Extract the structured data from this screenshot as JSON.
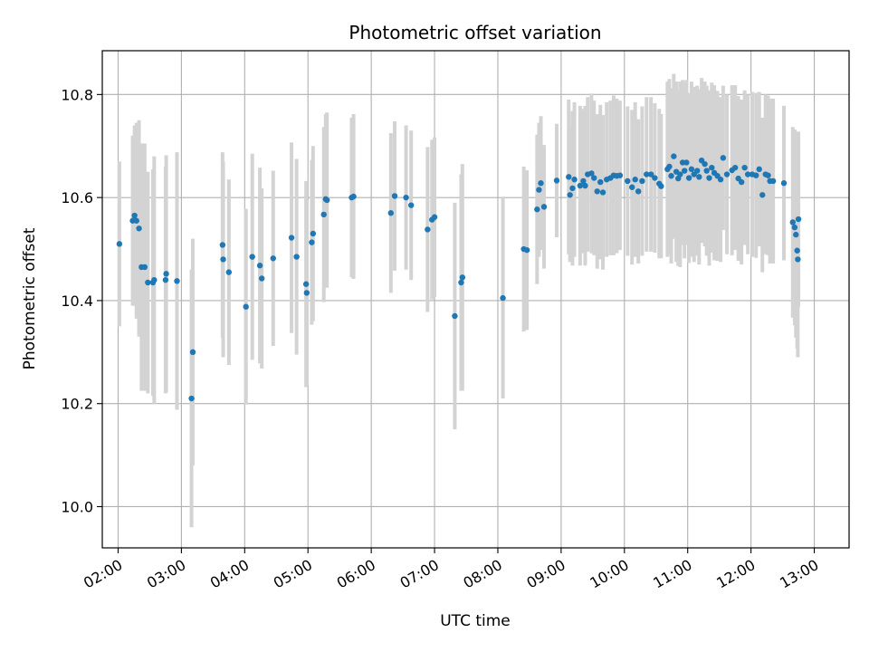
{
  "chart_data": {
    "type": "scatter",
    "title": "Photometric offset variation",
    "xlabel": "UTC time",
    "ylabel": "Photometric offset",
    "x_unit": "hours UTC",
    "xlim": [
      1.75,
      13.55
    ],
    "ylim": [
      9.92,
      10.885
    ],
    "x_ticks": [
      {
        "value": 2,
        "label": "02:00"
      },
      {
        "value": 3,
        "label": "03:00"
      },
      {
        "value": 4,
        "label": "04:00"
      },
      {
        "value": 5,
        "label": "05:00"
      },
      {
        "value": 6,
        "label": "06:00"
      },
      {
        "value": 7,
        "label": "07:00"
      },
      {
        "value": 8,
        "label": "08:00"
      },
      {
        "value": 9,
        "label": "09:00"
      },
      {
        "value": 10,
        "label": "10:00"
      },
      {
        "value": 11,
        "label": "11:00"
      },
      {
        "value": 12,
        "label": "12:00"
      },
      {
        "value": 13,
        "label": "13:00"
      }
    ],
    "y_ticks": [
      {
        "value": 10.0,
        "label": "10.0"
      },
      {
        "value": 10.2,
        "label": "10.2"
      },
      {
        "value": 10.4,
        "label": "10.4"
      },
      {
        "value": 10.6,
        "label": "10.6"
      },
      {
        "value": 10.8,
        "label": "10.8"
      }
    ],
    "grid": true,
    "colors": {
      "point": "#1f77b4",
      "errorbar": "#d3d3d3",
      "grid": "#b0b0b0"
    },
    "points": [
      [
        2.02,
        10.51,
        0.16
      ],
      [
        2.23,
        10.555,
        0.165
      ],
      [
        2.26,
        10.565,
        0.175
      ],
      [
        2.29,
        10.555,
        0.19
      ],
      [
        2.33,
        10.54,
        0.21
      ],
      [
        2.37,
        10.465,
        0.24
      ],
      [
        2.42,
        10.465,
        0.24
      ],
      [
        2.47,
        10.435,
        0.215
      ],
      [
        2.55,
        10.435,
        0.22
      ],
      [
        2.57,
        10.44,
        0.24
      ],
      [
        2.75,
        10.44,
        0.22
      ],
      [
        2.76,
        10.452,
        0.23
      ],
      [
        2.93,
        10.438,
        0.25
      ],
      [
        3.16,
        10.21,
        0.25
      ],
      [
        3.18,
        10.3,
        0.22
      ],
      [
        3.65,
        10.508,
        0.18
      ],
      [
        3.66,
        10.48,
        0.19
      ],
      [
        3.75,
        10.455,
        0.18
      ],
      [
        4.02,
        10.388,
        0.19
      ],
      [
        4.12,
        10.485,
        0.2
      ],
      [
        4.24,
        10.468,
        0.19
      ],
      [
        4.27,
        10.443,
        0.175
      ],
      [
        4.45,
        10.482,
        0.17
      ],
      [
        4.74,
        10.522,
        0.185
      ],
      [
        4.82,
        10.485,
        0.19
      ],
      [
        4.97,
        10.432,
        0.2
      ],
      [
        4.98,
        10.415,
        0.18
      ],
      [
        5.06,
        10.513,
        0.16
      ],
      [
        5.08,
        10.53,
        0.17
      ],
      [
        5.25,
        10.567,
        0.17
      ],
      [
        5.28,
        10.597,
        0.165
      ],
      [
        5.3,
        10.595,
        0.17
      ],
      [
        5.69,
        10.6,
        0.155
      ],
      [
        5.72,
        10.602,
        0.16
      ],
      [
        6.31,
        10.57,
        0.155
      ],
      [
        6.37,
        10.603,
        0.145
      ],
      [
        6.55,
        10.6,
        0.14
      ],
      [
        6.63,
        10.585,
        0.145
      ],
      [
        6.89,
        10.538,
        0.16
      ],
      [
        6.96,
        10.557,
        0.155
      ],
      [
        7.0,
        10.562,
        0.155
      ],
      [
        7.32,
        10.37,
        0.22
      ],
      [
        7.42,
        10.435,
        0.21
      ],
      [
        7.44,
        10.445,
        0.22
      ],
      [
        8.08,
        10.405,
        0.195
      ],
      [
        8.41,
        10.5,
        0.16
      ],
      [
        8.46,
        10.498,
        0.155
      ],
      [
        8.62,
        10.577,
        0.145
      ],
      [
        8.65,
        10.615,
        0.13
      ],
      [
        8.68,
        10.628,
        0.13
      ],
      [
        8.73,
        10.582,
        0.12
      ],
      [
        8.93,
        10.633,
        0.11
      ],
      [
        9.12,
        10.64,
        0.15
      ],
      [
        9.14,
        10.605,
        0.13
      ],
      [
        9.18,
        10.618,
        0.15
      ],
      [
        9.21,
        10.635,
        0.15
      ],
      [
        9.3,
        10.623,
        0.155
      ],
      [
        9.35,
        10.632,
        0.14
      ],
      [
        9.38,
        10.623,
        0.155
      ],
      [
        9.42,
        10.645,
        0.15
      ],
      [
        9.48,
        10.647,
        0.155
      ],
      [
        9.52,
        10.638,
        0.15
      ],
      [
        9.57,
        10.612,
        0.15
      ],
      [
        9.62,
        10.63,
        0.15
      ],
      [
        9.66,
        10.61,
        0.15
      ],
      [
        9.72,
        10.635,
        0.15
      ],
      [
        9.78,
        10.638,
        0.15
      ],
      [
        9.83,
        10.643,
        0.155
      ],
      [
        9.88,
        10.642,
        0.15
      ],
      [
        9.93,
        10.643,
        0.145
      ],
      [
        10.05,
        10.632,
        0.145
      ],
      [
        10.12,
        10.62,
        0.15
      ],
      [
        10.17,
        10.635,
        0.15
      ],
      [
        10.22,
        10.612,
        0.14
      ],
      [
        10.28,
        10.632,
        0.145
      ],
      [
        10.35,
        10.645,
        0.15
      ],
      [
        10.42,
        10.645,
        0.15
      ],
      [
        10.48,
        10.638,
        0.145
      ],
      [
        10.55,
        10.627,
        0.145
      ],
      [
        10.58,
        10.622,
        0.14
      ],
      [
        10.68,
        10.655,
        0.17
      ],
      [
        10.71,
        10.66,
        0.17
      ],
      [
        10.74,
        10.642,
        0.17
      ],
      [
        10.78,
        10.68,
        0.16
      ],
      [
        10.82,
        10.65,
        0.175
      ],
      [
        10.85,
        10.637,
        0.17
      ],
      [
        10.88,
        10.645,
        0.18
      ],
      [
        10.92,
        10.668,
        0.16
      ],
      [
        10.95,
        10.652,
        0.17
      ],
      [
        10.98,
        10.668,
        0.16
      ],
      [
        11.02,
        10.638,
        0.165
      ],
      [
        11.06,
        10.655,
        0.17
      ],
      [
        11.1,
        10.645,
        0.17
      ],
      [
        11.15,
        10.652,
        0.165
      ],
      [
        11.18,
        10.64,
        0.17
      ],
      [
        11.22,
        10.672,
        0.16
      ],
      [
        11.27,
        10.665,
        0.16
      ],
      [
        11.3,
        10.652,
        0.165
      ],
      [
        11.34,
        10.638,
        0.17
      ],
      [
        11.38,
        10.658,
        0.165
      ],
      [
        11.42,
        10.648,
        0.17
      ],
      [
        11.47,
        10.642,
        0.165
      ],
      [
        11.52,
        10.635,
        0.16
      ],
      [
        11.56,
        10.677,
        0.14
      ],
      [
        11.62,
        10.645,
        0.155
      ],
      [
        11.7,
        10.653,
        0.165
      ],
      [
        11.75,
        10.658,
        0.16
      ],
      [
        11.8,
        10.637,
        0.16
      ],
      [
        11.85,
        10.63,
        0.16
      ],
      [
        11.9,
        10.658,
        0.15
      ],
      [
        11.95,
        10.645,
        0.155
      ],
      [
        12.02,
        10.645,
        0.16
      ],
      [
        12.08,
        10.643,
        0.16
      ],
      [
        12.13,
        10.655,
        0.15
      ],
      [
        12.18,
        10.605,
        0.15
      ],
      [
        12.23,
        10.645,
        0.155
      ],
      [
        12.27,
        10.643,
        0.155
      ],
      [
        12.3,
        10.632,
        0.16
      ],
      [
        12.35,
        10.632,
        0.16
      ],
      [
        12.52,
        10.628,
        0.15
      ],
      [
        12.66,
        10.552,
        0.185
      ],
      [
        12.69,
        10.542,
        0.19
      ],
      [
        12.71,
        10.528,
        0.2
      ],
      [
        12.73,
        10.497,
        0.19
      ],
      [
        12.74,
        10.48,
        0.19
      ],
      [
        12.75,
        10.558,
        0.17
      ]
    ]
  }
}
